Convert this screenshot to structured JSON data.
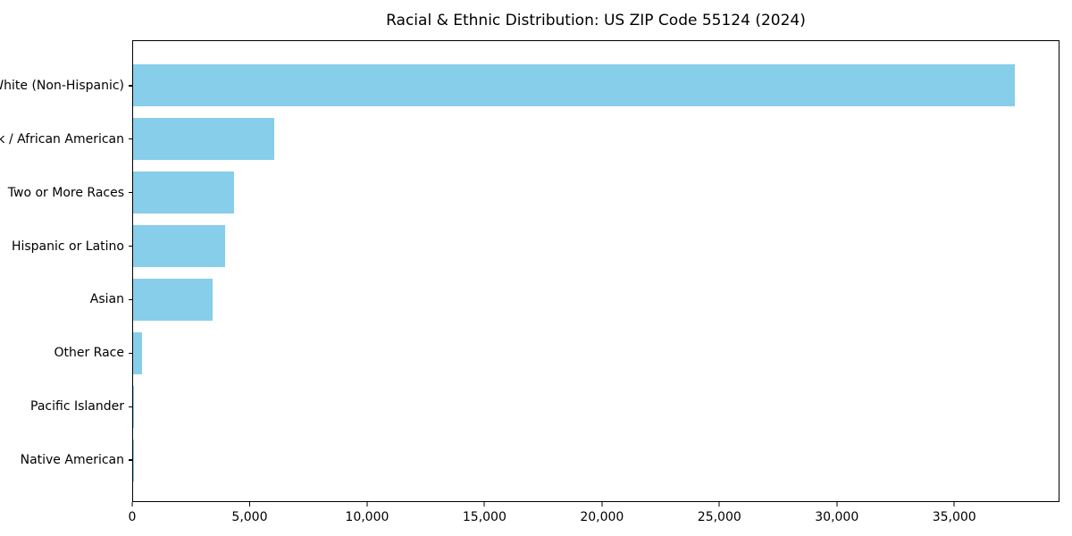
{
  "chart_data": {
    "type": "bar",
    "orientation": "horizontal",
    "title": "Racial & Ethnic Distribution: US ZIP Code 55124 (2024)",
    "categories": [
      "White (Non-Hispanic)",
      "Black / African American",
      "Two or More Races",
      "Hispanic or Latino",
      "Asian",
      "Other Race",
      "Pacific Islander",
      "Native American"
    ],
    "values": [
      37600,
      6040,
      4300,
      3920,
      3390,
      380,
      40,
      15
    ],
    "bar_color": "#87CEEB",
    "xlabel": "",
    "ylabel": "",
    "xlim": [
      0,
      39480
    ],
    "xticks": [
      0,
      5000,
      10000,
      15000,
      20000,
      25000,
      30000,
      35000
    ],
    "xtick_labels": [
      "0",
      "5,000",
      "10,000",
      "15,000",
      "20,000",
      "25,000",
      "30,000",
      "35,000"
    ],
    "grid": false,
    "legend": "none",
    "background_color": "#ffffff",
    "axis_color": "#000000"
  }
}
